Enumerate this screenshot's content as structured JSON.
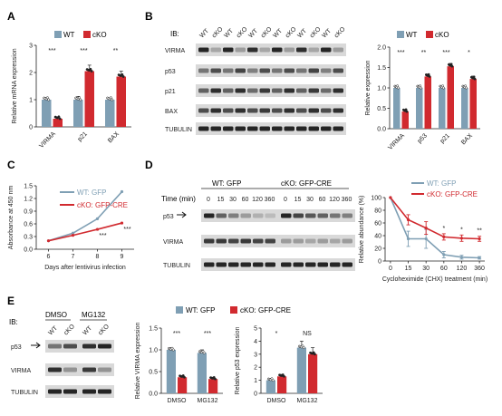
{
  "colors": {
    "wt": "#7f9fb4",
    "cko": "#d12a2f",
    "axis": "#222222",
    "band": "#222222",
    "panel_bg": "#ffffff"
  },
  "panels": {
    "A": "A",
    "B": "B",
    "C": "C",
    "D": "D",
    "E": "E"
  },
  "legend": {
    "wt": "WT",
    "cko": "cKO",
    "wt_gfp": "WT: GFP",
    "cko_gfp_cre": "cKO: GFP-CRE"
  },
  "ib_label": "IB:",
  "blot_B": {
    "lanes": [
      "WT",
      "cKO",
      "WT",
      "cKO",
      "WT",
      "cKO",
      "WT",
      "cKO",
      "WT",
      "cKO",
      "WT",
      "cKO"
    ],
    "rows": [
      "VIRMA",
      "p53",
      "p21",
      "BAX",
      "TUBULIN"
    ]
  },
  "blot_D": {
    "group_wt": "WT: GFP",
    "group_cko": "cKO: GFP-CRE",
    "time_label": "Time (min)",
    "times": [
      "0",
      "15",
      "30",
      "60",
      "120",
      "360",
      "0",
      "15",
      "30",
      "60",
      "120",
      "360"
    ],
    "rows": [
      "p53",
      "VIRMA",
      "TUBULIN"
    ]
  },
  "blot_E": {
    "conditions": [
      "DMSO",
      "MG132"
    ],
    "lanes": [
      "WT",
      "cKO",
      "WT",
      "cKO"
    ],
    "rows": [
      "p53",
      "VIRMA",
      "TUBULIN"
    ]
  },
  "chart_data": [
    {
      "id": "A",
      "type": "bar",
      "ylabel": "Relative mRNA expression",
      "ylim": [
        0,
        3
      ],
      "yticks": [
        "0",
        "1",
        "2",
        "3"
      ],
      "categories": [
        "VIRMA",
        "p21",
        "BAX"
      ],
      "series": [
        {
          "name": "WT",
          "values": [
            1.0,
            1.0,
            1.0
          ],
          "errors": [
            0.08,
            0.12,
            0.07
          ]
        },
        {
          "name": "cKO",
          "values": [
            0.3,
            2.05,
            1.85
          ],
          "errors": [
            0.05,
            0.22,
            0.2
          ]
        }
      ],
      "significance": [
        "***",
        "***",
        "**"
      ]
    },
    {
      "id": "B",
      "type": "bar",
      "ylabel": "Relative expression",
      "ylim": [
        0,
        2
      ],
      "yticks": [
        "0.0",
        "0.5",
        "1.0",
        "1.5",
        "2.0"
      ],
      "categories": [
        "VIRMA",
        "p53",
        "p21",
        "BAX"
      ],
      "series": [
        {
          "name": "WT",
          "values": [
            1.0,
            1.0,
            1.0,
            1.0
          ],
          "errors": [
            0.05,
            0.06,
            0.05,
            0.05
          ]
        },
        {
          "name": "cKO",
          "values": [
            0.42,
            1.28,
            1.53,
            1.22
          ],
          "errors": [
            0.05,
            0.06,
            0.07,
            0.07
          ]
        }
      ],
      "significance": [
        "***",
        "**",
        "***",
        "*"
      ]
    },
    {
      "id": "C",
      "type": "line",
      "ylabel": "Absorbance at 450 nm",
      "xlabel": "Days after lentivirus infection",
      "xlim": [
        5.5,
        9.5
      ],
      "ylim": [
        0.0,
        1.5
      ],
      "yticks": [
        "0.0",
        "0.3",
        "0.6",
        "0.9",
        "1.2",
        "1.5"
      ],
      "x": [
        6,
        7,
        8,
        9
      ],
      "series": [
        {
          "name": "WT: GFP",
          "values": [
            0.2,
            0.38,
            0.72,
            1.36
          ]
        },
        {
          "name": "cKO: GFP-CRE",
          "values": [
            0.2,
            0.33,
            0.47,
            0.62
          ]
        }
      ],
      "significance": [
        "",
        "",
        "***",
        "***"
      ]
    },
    {
      "id": "D",
      "type": "line",
      "ylabel": "Relative abundance (%)",
      "xlabel": "Cycloheximide (CHX) treatment (min)",
      "ylim": [
        0,
        100
      ],
      "yticks": [
        "0",
        "20",
        "40",
        "60",
        "80",
        "100"
      ],
      "x": [
        "0",
        "15",
        "30",
        "60",
        "120",
        "360"
      ],
      "series": [
        {
          "name": "WT: GFP",
          "values": [
            100,
            35,
            35,
            10,
            6,
            5
          ],
          "errors": [
            0,
            12,
            15,
            5,
            3,
            2
          ]
        },
        {
          "name": "cKO: GFP-CRE",
          "values": [
            100,
            65,
            52,
            38,
            36,
            35
          ],
          "errors": [
            0,
            8,
            10,
            5,
            5,
            4
          ]
        }
      ],
      "significance": [
        "",
        "",
        "",
        "*",
        "*",
        "**"
      ]
    },
    {
      "id": "E1",
      "type": "bar",
      "ylabel": "Relative VIRMA expression",
      "ylim": [
        0,
        1.5
      ],
      "yticks": [
        "0.0",
        "0.5",
        "1.0",
        "1.5"
      ],
      "categories": [
        "DMSO",
        "MG132"
      ],
      "series": [
        {
          "name": "WT: GFP",
          "values": [
            1.0,
            0.93
          ],
          "errors": [
            0.05,
            0.07
          ]
        },
        {
          "name": "cKO: GFP-CRE",
          "values": [
            0.37,
            0.33
          ],
          "errors": [
            0.04,
            0.04
          ]
        }
      ],
      "significance": [
        "***",
        "***"
      ]
    },
    {
      "id": "E2",
      "type": "bar",
      "ylabel": "Relative p53 expression",
      "ylim": [
        0,
        5
      ],
      "yticks": [
        "0",
        "1",
        "2",
        "3",
        "4",
        "5"
      ],
      "categories": [
        "DMSO",
        "MG132"
      ],
      "series": [
        {
          "name": "WT: GFP",
          "values": [
            1.0,
            3.5
          ],
          "errors": [
            0.15,
            0.5
          ]
        },
        {
          "name": "cKO: GFP-CRE",
          "values": [
            1.3,
            3.0
          ],
          "errors": [
            0.15,
            0.5
          ]
        }
      ],
      "significance": [
        "*",
        "NS"
      ]
    }
  ]
}
